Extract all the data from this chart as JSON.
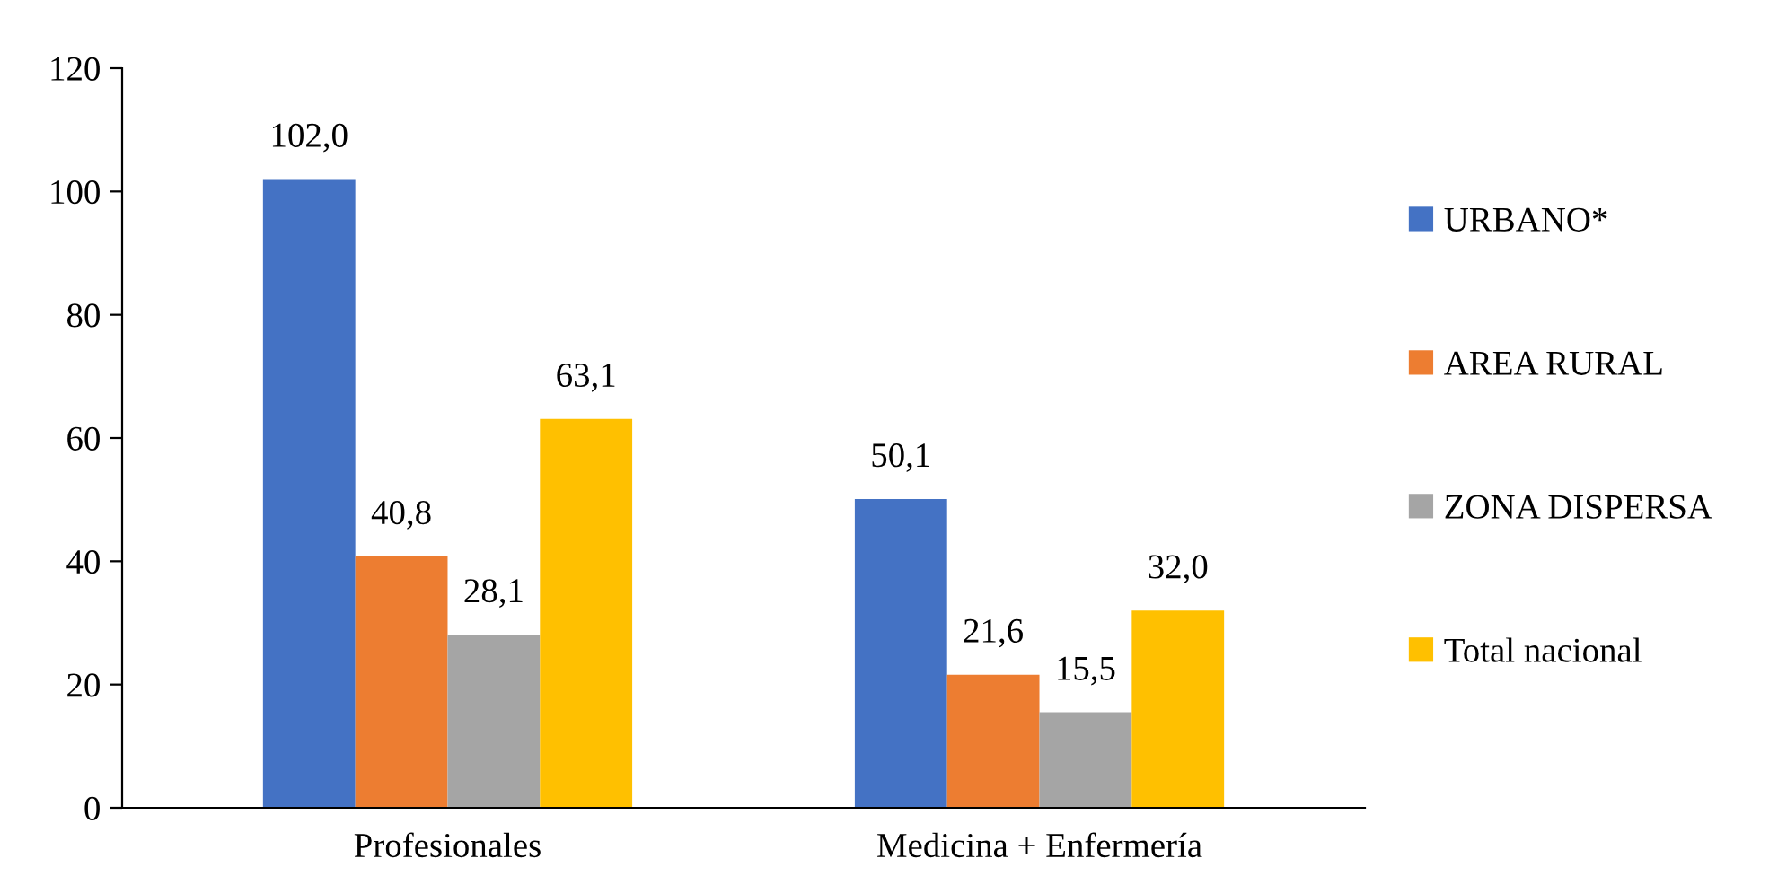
{
  "chart_data": {
    "type": "bar",
    "categories": [
      "Profesionales",
      "Medicina + Enfermería"
    ],
    "series": [
      {
        "name": "URBANO*",
        "color": "#4472c4",
        "values": [
          102.0,
          50.1
        ],
        "value_labels": [
          "102,0",
          "50,1"
        ]
      },
      {
        "name": "AREA RURAL",
        "color": "#ed7d31",
        "values": [
          40.8,
          21.6
        ],
        "value_labels": [
          "40,8",
          "21,6"
        ]
      },
      {
        "name": "ZONA DISPERSA",
        "color": "#a5a5a5",
        "values": [
          28.1,
          15.5
        ],
        "value_labels": [
          "28,1",
          "15,5"
        ]
      },
      {
        "name": "Total nacional",
        "color": "#ffc000",
        "values": [
          63.1,
          32.0
        ],
        "value_labels": [
          "63,1",
          "32,0"
        ]
      }
    ],
    "ylim": [
      0,
      120
    ],
    "yticks": [
      0,
      20,
      40,
      60,
      80,
      100,
      120
    ],
    "grid": false,
    "legend": "right"
  }
}
